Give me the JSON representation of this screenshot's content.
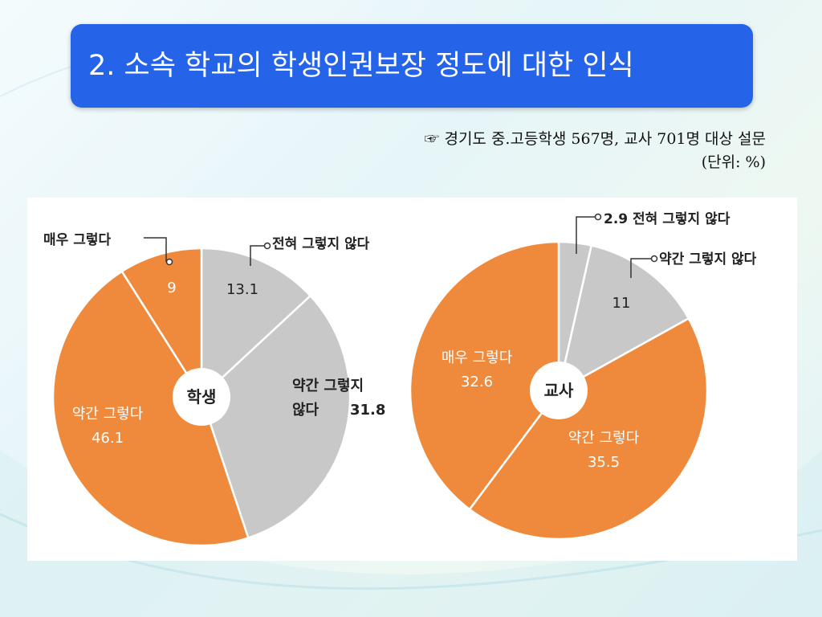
{
  "slide": {
    "title": "2. 소속 학교의 학생인권보장 정도에 대한 인식",
    "source_note": "☞ 경기도 중.고등학생 567명, 교사 701명 대상 설문",
    "unit_note": "(단위: %)"
  },
  "colors": {
    "orange": "#ef8a3c",
    "gray": "#c8c8c8",
    "title_bg": "#2563e8"
  },
  "chart_data": [
    {
      "type": "pie",
      "center_label": "학생",
      "slices": [
        {
          "label": "전혀 그렇지 않다",
          "value": 13.1,
          "value_text": "13.1",
          "color": "#c8c8c8"
        },
        {
          "label": "약간 그렇지 않다",
          "value": 31.8,
          "value_text": "31.8",
          "color": "#c8c8c8"
        },
        {
          "label": "약간 그렇다",
          "value": 46.1,
          "value_text": "46.1",
          "color": "#ef8a3c"
        },
        {
          "label": "매우 그렇다",
          "value": 9,
          "value_text": "9",
          "color": "#ef8a3c"
        }
      ]
    },
    {
      "type": "pie",
      "center_label": "교사",
      "slices": [
        {
          "label": "전혀 그렇지 않다",
          "value": 2.9,
          "value_text": "2.9",
          "color": "#c8c8c8"
        },
        {
          "label": "약간 그렇지 않다",
          "value": 11,
          "value_text": "11",
          "color": "#c8c8c8"
        },
        {
          "label": "약간 그렇다",
          "value": 35.5,
          "value_text": "35.5",
          "color": "#ef8a3c"
        },
        {
          "label": "매우 그렇다",
          "value": 32.6,
          "value_text": "32.6",
          "color": "#ef8a3c"
        }
      ]
    }
  ]
}
